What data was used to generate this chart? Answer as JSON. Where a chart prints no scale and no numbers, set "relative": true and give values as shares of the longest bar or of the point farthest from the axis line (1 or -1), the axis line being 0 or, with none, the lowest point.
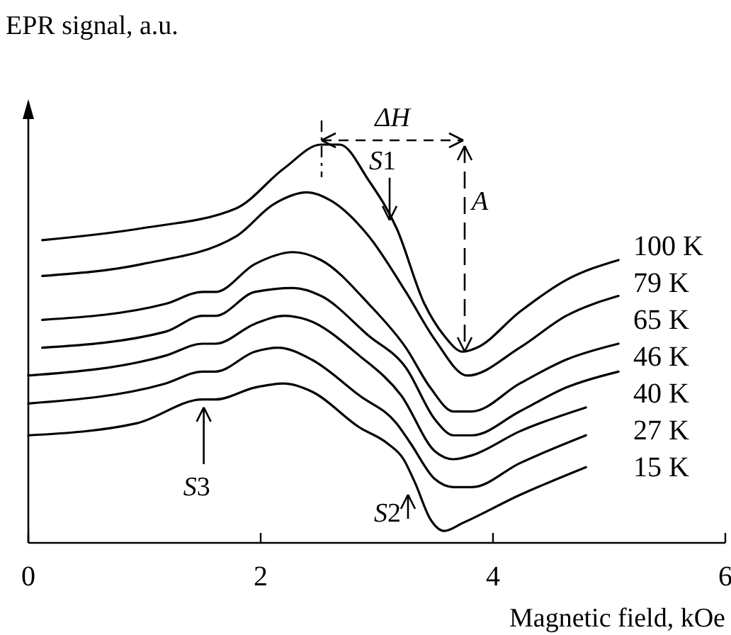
{
  "chart_data": {
    "type": "line",
    "relative": true,
    "xlabel": "Magnetic field, kOe",
    "ylabel": "EPR signal, a.u.",
    "xlim": [
      0,
      6
    ],
    "xticks": [
      0,
      2,
      4,
      6
    ],
    "legend": false,
    "grid": false,
    "marker": "none",
    "line_style": "solid",
    "series": [
      {
        "name": "100 K",
        "color": "#000000",
        "x": [
          0.12,
          0.98,
          1.79,
          2.2,
          2.52,
          2.68,
          2.93,
          3.17,
          3.41,
          3.58,
          3.74,
          3.86,
          4.23,
          4.63,
          5.08
        ],
        "values": [
          0.76,
          0.79,
          0.84,
          0.94,
          1.0,
          1.0,
          0.91,
          0.79,
          0.6,
          0.52,
          0.48,
          0.49,
          0.58,
          0.66,
          0.71
        ]
      },
      {
        "name": "79 K",
        "color": "#000000",
        "x": [
          0.12,
          0.98,
          1.79,
          2.11,
          2.4,
          2.6,
          2.93,
          3.25,
          3.5,
          3.78,
          4.23,
          4.63,
          5.08
        ],
        "values": [
          0.67,
          0.7,
          0.77,
          0.85,
          0.88,
          0.86,
          0.77,
          0.63,
          0.51,
          0.42,
          0.49,
          0.57,
          0.62
        ]
      },
      {
        "name": "65 K",
        "color": "#000000",
        "x": [
          0.12,
          1.18,
          1.5,
          1.61,
          1.95,
          2.28,
          2.52,
          2.93,
          3.25,
          3.46,
          3.66,
          3.82,
          4.23,
          4.63,
          5.08
        ],
        "values": [
          0.56,
          0.6,
          0.63,
          0.63,
          0.7,
          0.73,
          0.71,
          0.6,
          0.49,
          0.39,
          0.33,
          0.33,
          0.4,
          0.46,
          0.5
        ]
      },
      {
        "name": "46 K",
        "color": "#000000",
        "x": [
          0.12,
          1.18,
          1.5,
          1.61,
          1.95,
          2.28,
          2.52,
          2.93,
          3.25,
          3.5,
          3.66,
          3.82,
          4.23,
          4.63,
          5.08
        ],
        "values": [
          0.49,
          0.53,
          0.57,
          0.57,
          0.63,
          0.64,
          0.62,
          0.52,
          0.44,
          0.31,
          0.27,
          0.27,
          0.33,
          0.39,
          0.43
        ]
      },
      {
        "name": "40 K",
        "color": "#000000",
        "x": [
          0,
          1.18,
          1.5,
          1.61,
          1.95,
          2.2,
          2.4,
          2.85,
          3.21,
          3.5,
          3.66,
          3.82,
          4.23,
          4.8
        ],
        "values": [
          0.42,
          0.47,
          0.5,
          0.5,
          0.55,
          0.57,
          0.56,
          0.47,
          0.37,
          0.23,
          0.21,
          0.22,
          0.28,
          0.34
        ]
      },
      {
        "name": "27 K",
        "color": "#000000",
        "x": [
          0,
          1.18,
          1.5,
          1.61,
          1.95,
          2.15,
          2.44,
          2.85,
          3.17,
          3.29,
          3.5,
          3.66,
          3.82,
          4.23,
          4.8
        ],
        "values": [
          0.35,
          0.4,
          0.43,
          0.43,
          0.48,
          0.49,
          0.46,
          0.37,
          0.3,
          0.25,
          0.16,
          0.14,
          0.14,
          0.2,
          0.27
        ]
      },
      {
        "name": "15 K",
        "color": "#000000",
        "x": [
          0,
          0.93,
          1.5,
          1.61,
          1.95,
          2.2,
          2.44,
          2.85,
          3.09,
          3.23,
          3.33,
          3.46,
          3.58,
          3.74,
          4.23,
          4.8
        ],
        "values": [
          0.27,
          0.3,
          0.36,
          0.36,
          0.39,
          0.4,
          0.38,
          0.29,
          0.25,
          0.21,
          0.15,
          0.06,
          0.03,
          0.05,
          0.12,
          0.19
        ]
      }
    ],
    "annotations": [
      "ΔH",
      {
        "text": "S1",
        "x": 3.11,
        "y": 0.81
      },
      "A",
      "S2",
      {
        "text": "S3",
        "x": 1.51,
        "y": 0.34
      }
    ]
  }
}
